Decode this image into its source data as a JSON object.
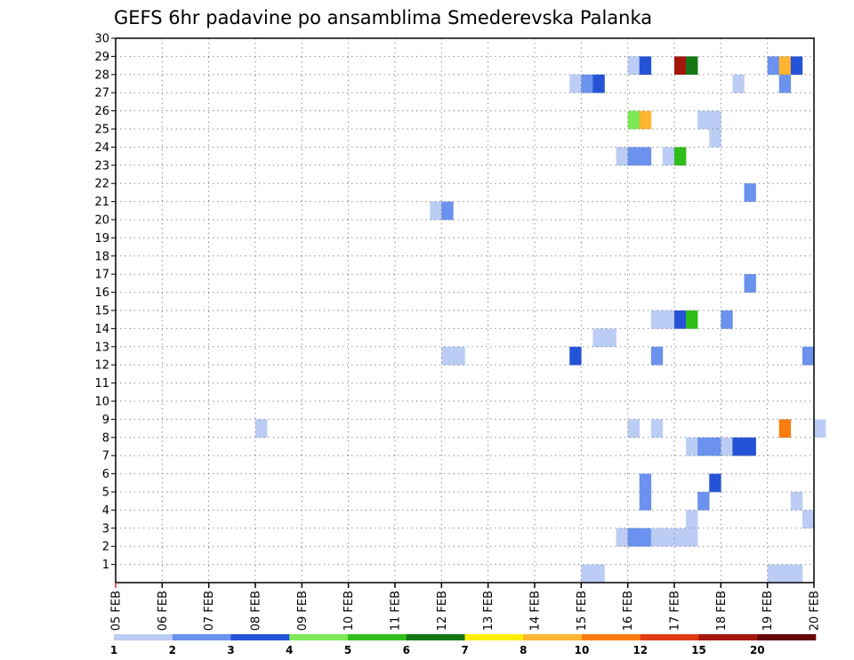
{
  "chart_data": {
    "type": "heatmap",
    "title": "GEFS 6hr padavine po ansamblima Smederevska Palanka",
    "x_ticks": [
      "05 FEB",
      "06 FEB",
      "07 FEB",
      "08 FEB",
      "09 FEB",
      "10 FEB",
      "11 FEB",
      "12 FEB",
      "13 FEB",
      "14 FEB",
      "15 FEB",
      "16 FEB",
      "17 FEB",
      "18 FEB",
      "19 FEB",
      "20 FEB"
    ],
    "y_ticks": [
      1,
      2,
      3,
      4,
      5,
      6,
      7,
      8,
      9,
      10,
      11,
      12,
      13,
      14,
      15,
      16,
      17,
      18,
      19,
      20,
      21,
      22,
      23,
      24,
      25,
      26,
      27,
      28,
      29,
      30
    ],
    "xlim": [
      0,
      15
    ],
    "ylim": [
      0,
      30
    ],
    "x_step_days": 0.25,
    "grid": true,
    "legend": {
      "placement": "bottom",
      "labels": [
        "1",
        "2",
        "3",
        "4",
        "5",
        "6",
        "7",
        "8",
        "10",
        "12",
        "15",
        "20"
      ],
      "colors": [
        "#bccdf5",
        "#6a92ee",
        "#2453d8",
        "#7fe859",
        "#2fbe1c",
        "#157616",
        "#ffee00",
        "#ffb530",
        "#f97d10",
        "#e13a15",
        "#a3170c",
        "#64060b"
      ]
    },
    "cells": [
      {
        "x": 10.0,
        "y": 0,
        "color": "#bccdf5"
      },
      {
        "x": 10.25,
        "y": 0,
        "color": "#bccdf5"
      },
      {
        "x": 14.0,
        "y": 0,
        "color": "#bccdf5"
      },
      {
        "x": 14.25,
        "y": 0,
        "color": "#bccdf5"
      },
      {
        "x": 14.5,
        "y": 0,
        "color": "#bccdf5"
      },
      {
        "x": 10.75,
        "y": 2,
        "color": "#bccdf5"
      },
      {
        "x": 11.0,
        "y": 2,
        "color": "#6a92ee"
      },
      {
        "x": 11.25,
        "y": 2,
        "color": "#6a92ee"
      },
      {
        "x": 11.5,
        "y": 2,
        "color": "#bccdf5"
      },
      {
        "x": 11.75,
        "y": 2,
        "color": "#bccdf5"
      },
      {
        "x": 12.0,
        "y": 2,
        "color": "#bccdf5"
      },
      {
        "x": 12.25,
        "y": 2,
        "color": "#bccdf5"
      },
      {
        "x": 12.25,
        "y": 3,
        "color": "#bccdf5"
      },
      {
        "x": 14.75,
        "y": 3,
        "color": "#bccdf5"
      },
      {
        "x": 11.25,
        "y": 4,
        "color": "#6a92ee"
      },
      {
        "x": 12.5,
        "y": 4,
        "color": "#6a92ee"
      },
      {
        "x": 14.5,
        "y": 4,
        "color": "#bccdf5"
      },
      {
        "x": 11.25,
        "y": 5,
        "color": "#6a92ee"
      },
      {
        "x": 12.75,
        "y": 5,
        "color": "#2453d8"
      },
      {
        "x": 12.25,
        "y": 7,
        "color": "#bccdf5"
      },
      {
        "x": 12.5,
        "y": 7,
        "color": "#6a92ee"
      },
      {
        "x": 12.75,
        "y": 7,
        "color": "#6a92ee"
      },
      {
        "x": 13.0,
        "y": 7,
        "color": "#bccdf5"
      },
      {
        "x": 13.25,
        "y": 7,
        "color": "#2453d8"
      },
      {
        "x": 13.5,
        "y": 7,
        "color": "#2453d8"
      },
      {
        "x": 3.0,
        "y": 8,
        "color": "#bccdf5"
      },
      {
        "x": 11.0,
        "y": 8,
        "color": "#bccdf5"
      },
      {
        "x": 11.5,
        "y": 8,
        "color": "#bccdf5"
      },
      {
        "x": 14.25,
        "y": 8,
        "color": "#f97d10"
      },
      {
        "x": 15.0,
        "y": 8,
        "color": "#bccdf5"
      },
      {
        "x": 7.0,
        "y": 12,
        "color": "#bccdf5"
      },
      {
        "x": 7.25,
        "y": 12,
        "color": "#bccdf5"
      },
      {
        "x": 9.75,
        "y": 12,
        "color": "#2453d8"
      },
      {
        "x": 11.5,
        "y": 12,
        "color": "#6a92ee"
      },
      {
        "x": 14.75,
        "y": 12,
        "color": "#6a92ee"
      },
      {
        "x": 10.25,
        "y": 13,
        "color": "#bccdf5"
      },
      {
        "x": 10.5,
        "y": 13,
        "color": "#bccdf5"
      },
      {
        "x": 11.5,
        "y": 14,
        "color": "#bccdf5"
      },
      {
        "x": 11.75,
        "y": 14,
        "color": "#bccdf5"
      },
      {
        "x": 12.0,
        "y": 14,
        "color": "#2453d8"
      },
      {
        "x": 12.25,
        "y": 14,
        "color": "#2fbe1c"
      },
      {
        "x": 13.0,
        "y": 14,
        "color": "#6a92ee"
      },
      {
        "x": 13.5,
        "y": 16,
        "color": "#6a92ee"
      },
      {
        "x": 6.75,
        "y": 20,
        "color": "#bccdf5"
      },
      {
        "x": 7.0,
        "y": 20,
        "color": "#6a92ee"
      },
      {
        "x": 13.5,
        "y": 21,
        "color": "#6a92ee"
      },
      {
        "x": 10.75,
        "y": 23,
        "color": "#bccdf5"
      },
      {
        "x": 11.0,
        "y": 23,
        "color": "#6a92ee"
      },
      {
        "x": 11.25,
        "y": 23,
        "color": "#6a92ee"
      },
      {
        "x": 11.75,
        "y": 23,
        "color": "#bccdf5"
      },
      {
        "x": 12.0,
        "y": 23,
        "color": "#2fbe1c"
      },
      {
        "x": 12.75,
        "y": 24,
        "color": "#bccdf5"
      },
      {
        "x": 12.5,
        "y": 25,
        "color": "#bccdf5"
      },
      {
        "x": 12.75,
        "y": 25,
        "color": "#bccdf5"
      },
      {
        "x": 11.0,
        "y": 25,
        "color": "#7fe859"
      },
      {
        "x": 11.25,
        "y": 25,
        "color": "#ffb530"
      },
      {
        "x": 13.25,
        "y": 27,
        "color": "#bccdf5"
      },
      {
        "x": 9.75,
        "y": 27,
        "color": "#bccdf5"
      },
      {
        "x": 10.0,
        "y": 27,
        "color": "#6a92ee"
      },
      {
        "x": 10.25,
        "y": 27,
        "color": "#2453d8"
      },
      {
        "x": 14.25,
        "y": 27,
        "color": "#6a92ee"
      },
      {
        "x": 11.0,
        "y": 28,
        "color": "#bccdf5"
      },
      {
        "x": 11.25,
        "y": 28,
        "color": "#2453d8"
      },
      {
        "x": 12.0,
        "y": 28,
        "color": "#a3170c"
      },
      {
        "x": 12.25,
        "y": 28,
        "color": "#157616"
      },
      {
        "x": 14.0,
        "y": 28,
        "color": "#6a92ee"
      },
      {
        "x": 14.25,
        "y": 28,
        "color": "#ffb530"
      },
      {
        "x": 14.5,
        "y": 28,
        "color": "#2453d8"
      }
    ]
  }
}
